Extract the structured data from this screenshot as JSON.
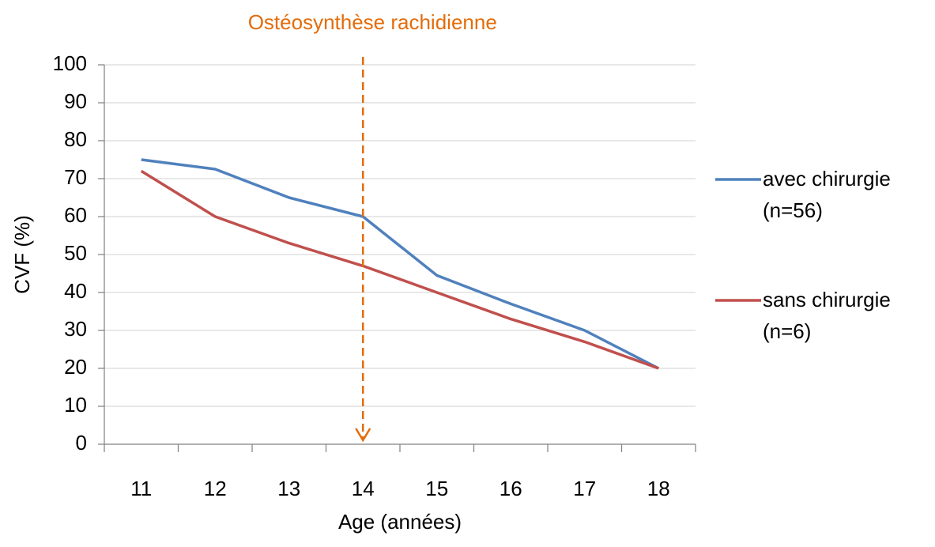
{
  "chart_data": {
    "type": "line",
    "categories": [
      "11",
      "12",
      "13",
      "14",
      "15",
      "16",
      "17",
      "18"
    ],
    "series": [
      {
        "name": "avec chirurgie (n=56)",
        "color": "#4f81bd",
        "values": [
          75,
          72.5,
          65,
          60,
          44.5,
          37,
          30,
          20
        ]
      },
      {
        "name": "sans chirurgie (n=6)",
        "color": "#c0504d",
        "values": [
          72,
          60,
          53,
          47,
          40,
          33,
          27,
          20
        ]
      }
    ],
    "ylim": [
      0,
      100
    ],
    "yticks": [
      0,
      10,
      20,
      30,
      40,
      50,
      60,
      70,
      80,
      90,
      100
    ],
    "ylabel": "CVF (%)",
    "xlabel": "Age (années)",
    "grid": true,
    "legend": "right",
    "annotation": {
      "text": "Ostéosynthèse rachidienne",
      "x": "14",
      "color": "#e46c0a"
    }
  }
}
